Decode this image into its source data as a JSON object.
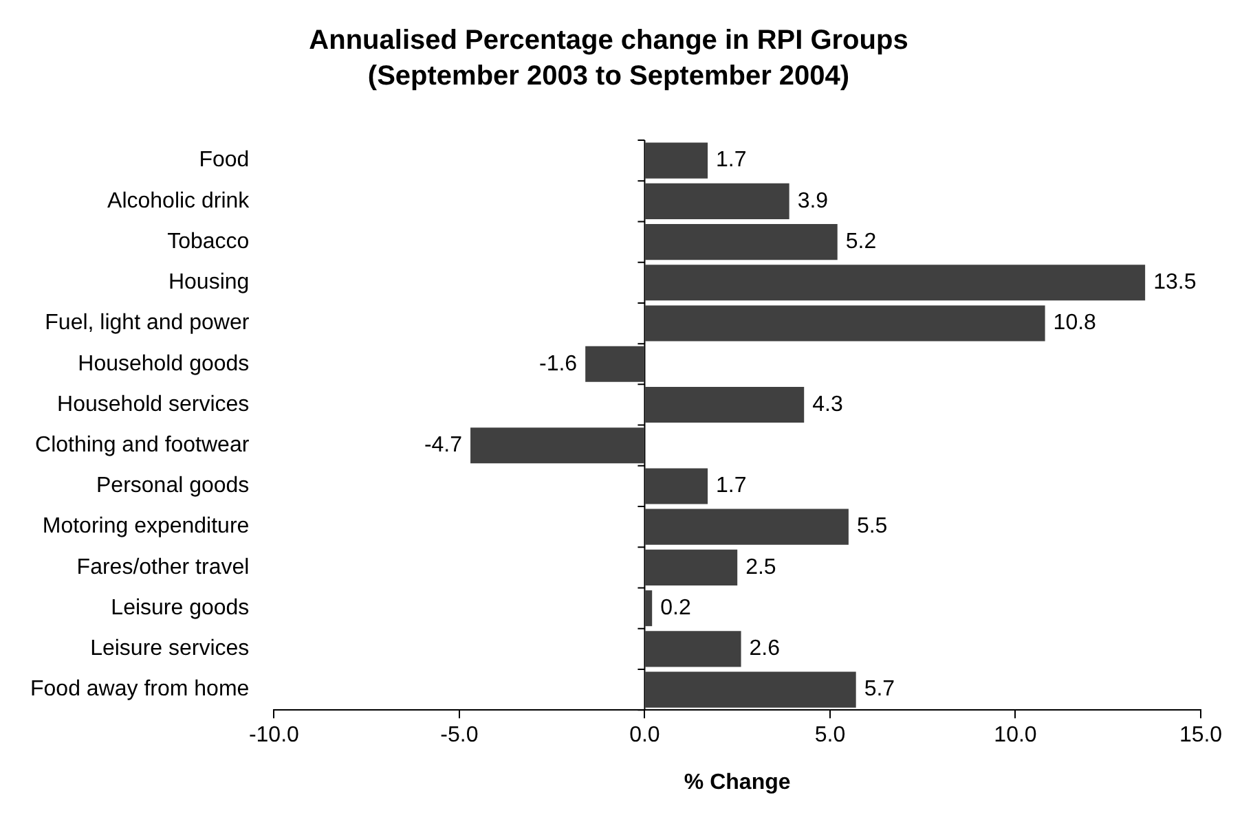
{
  "chart_data": {
    "type": "bar",
    "orientation": "horizontal",
    "title": "Annualised Percentage change in RPI Groups",
    "subtitle": "(September 2003 to September 2004)",
    "xlabel": "% Change",
    "categories": [
      "Food",
      "Alcoholic drink",
      "Tobacco",
      "Housing",
      "Fuel, light and power",
      "Household goods",
      "Household services",
      "Clothing and footwear",
      "Personal goods",
      "Motoring expenditure",
      "Fares/other travel",
      "Leisure goods",
      "Leisure services",
      "Food away from home"
    ],
    "values": [
      1.7,
      3.9,
      5.2,
      13.5,
      10.8,
      -1.6,
      4.3,
      -4.7,
      1.7,
      5.5,
      2.5,
      0.2,
      2.6,
      5.7
    ],
    "color": "#404040",
    "xlim": [
      -10,
      15
    ],
    "xticks": [
      {
        "value": -10,
        "label": "-10.0"
      },
      {
        "value": -5,
        "label": "-5.0"
      },
      {
        "value": 0,
        "label": "0.0"
      },
      {
        "value": 5,
        "label": "5.0"
      },
      {
        "value": 10,
        "label": "10.0"
      },
      {
        "value": 15,
        "label": "15.0"
      }
    ],
    "data_labels": true,
    "legend": false
  }
}
